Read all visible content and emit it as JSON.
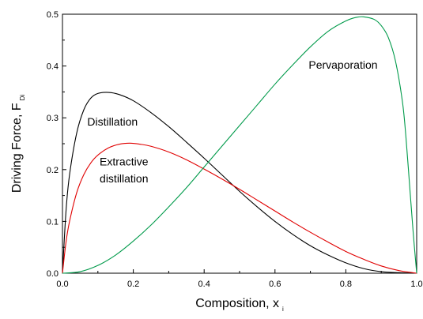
{
  "chart_data": {
    "type": "line",
    "xlabel": "Composition, x",
    "xlabel_sub": "i",
    "ylabel": "Driving Force, F",
    "ylabel_sub": "Di",
    "xlim": [
      0.0,
      1.0
    ],
    "ylim": [
      0.0,
      0.5
    ],
    "x_ticks": [
      0.0,
      0.2,
      0.4,
      0.6,
      0.8,
      1.0
    ],
    "x_tick_labels": [
      "0.0",
      "0.2",
      "0.4",
      "0.6",
      "0.8",
      "1.0"
    ],
    "y_ticks": [
      0.0,
      0.1,
      0.2,
      0.3,
      0.4,
      0.5
    ],
    "y_tick_labels": [
      "0.0",
      "0.1",
      "0.2",
      "0.3",
      "0.4",
      "0.5"
    ],
    "grid": false,
    "series": [
      {
        "key": "distillation",
        "color": "#000000",
        "x": [
          0.0,
          0.01,
          0.02,
          0.04,
          0.06,
          0.08,
          0.1,
          0.13,
          0.16,
          0.2,
          0.25,
          0.3,
          0.35,
          0.4,
          0.45,
          0.5,
          0.55,
          0.6,
          0.65,
          0.7,
          0.75,
          0.8,
          0.85,
          0.9,
          0.95,
          1.0
        ],
        "y": [
          0.0,
          0.12,
          0.19,
          0.27,
          0.315,
          0.338,
          0.347,
          0.349,
          0.345,
          0.333,
          0.31,
          0.283,
          0.253,
          0.222,
          0.19,
          0.158,
          0.128,
          0.1,
          0.075,
          0.053,
          0.035,
          0.02,
          0.009,
          0.003,
          0.001,
          0.0
        ]
      },
      {
        "key": "extractive",
        "color": "#e00000",
        "x": [
          0.0,
          0.01,
          0.02,
          0.04,
          0.06,
          0.08,
          0.1,
          0.13,
          0.16,
          0.19,
          0.22,
          0.25,
          0.3,
          0.35,
          0.4,
          0.45,
          0.5,
          0.55,
          0.6,
          0.65,
          0.7,
          0.75,
          0.8,
          0.85,
          0.9,
          0.95,
          1.0
        ],
        "y": [
          0.0,
          0.06,
          0.1,
          0.155,
          0.19,
          0.213,
          0.228,
          0.242,
          0.249,
          0.251,
          0.249,
          0.245,
          0.234,
          0.219,
          0.201,
          0.182,
          0.162,
          0.141,
          0.12,
          0.099,
          0.079,
          0.06,
          0.042,
          0.027,
          0.014,
          0.005,
          0.0
        ]
      },
      {
        "key": "pervaporation",
        "color": "#009a4a",
        "x": [
          0.0,
          0.05,
          0.1,
          0.15,
          0.2,
          0.25,
          0.3,
          0.35,
          0.4,
          0.45,
          0.5,
          0.55,
          0.6,
          0.65,
          0.7,
          0.75,
          0.8,
          0.83,
          0.85,
          0.88,
          0.9,
          0.92,
          0.94,
          0.96,
          0.97,
          0.98,
          0.99,
          1.0
        ],
        "y": [
          0.0,
          0.003,
          0.015,
          0.035,
          0.062,
          0.093,
          0.128,
          0.165,
          0.205,
          0.245,
          0.285,
          0.325,
          0.365,
          0.402,
          0.437,
          0.467,
          0.487,
          0.494,
          0.495,
          0.49,
          0.478,
          0.455,
          0.41,
          0.33,
          0.26,
          0.17,
          0.08,
          0.0
        ]
      }
    ],
    "annotations": [
      {
        "text": "Distillation",
        "x": 0.07,
        "y": 0.285
      },
      {
        "text": "Extractive",
        "x": 0.105,
        "y": 0.208
      },
      {
        "text": "distillation",
        "x": 0.105,
        "y": 0.175
      },
      {
        "text": "Pervaporation",
        "x": 0.695,
        "y": 0.395
      }
    ]
  }
}
